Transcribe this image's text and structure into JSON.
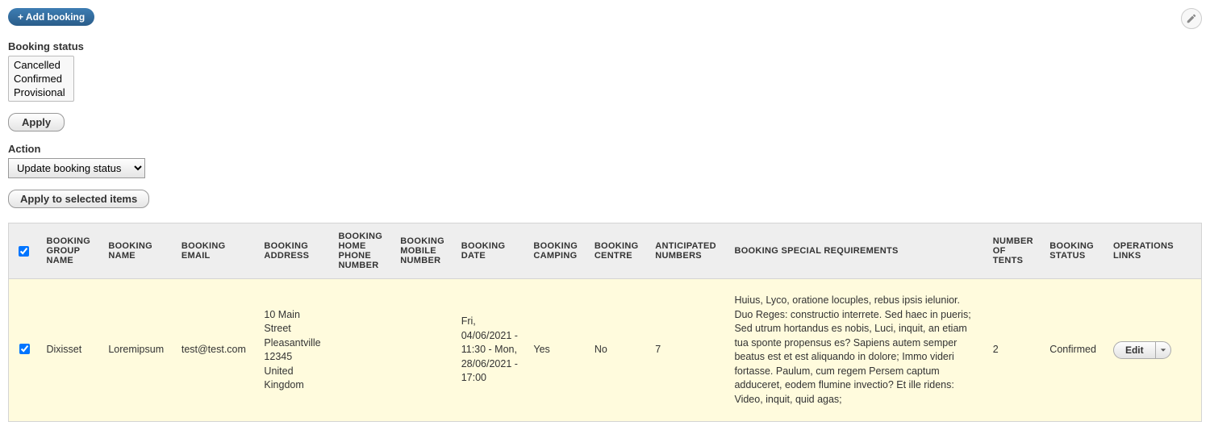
{
  "top": {
    "add_booking_label": "+ Add booking"
  },
  "filter": {
    "status_label": "Booking status",
    "status_options": [
      "Cancelled",
      "Confirmed",
      "Provisional"
    ],
    "apply_label": "Apply"
  },
  "action": {
    "label": "Action",
    "options": [
      "Update booking status"
    ],
    "selected": "Update booking status",
    "apply_selected_label": "Apply to selected items"
  },
  "table": {
    "columns": [
      "",
      "BOOKING GROUP NAME",
      "BOOKING NAME",
      "BOOKING EMAIL",
      "BOOKING ADDRESS",
      "BOOKING HOME PHONE NUMBER",
      "BOOKING MOBILE NUMBER",
      "BOOKING DATE",
      "BOOKING CAMPING",
      "BOOKING CENTRE",
      "ANTICIPATED NUMBERS",
      "BOOKING SPECIAL REQUIREMENTS",
      "NUMBER OF TENTS",
      "BOOKING STATUS",
      "OPERATIONS LINKS"
    ],
    "col_widths": [
      "32px",
      "72px",
      "84px",
      "90px",
      "74px",
      "72px",
      "66px",
      "84px",
      "64px",
      "62px",
      "92px",
      "300px",
      "62px",
      "72px",
      "110px"
    ],
    "header_checked": true,
    "rows": [
      {
        "checked": true,
        "group_name": "Dixisset",
        "name": "Loremipsum",
        "email": "test@test.com",
        "address": "10 Main Street\nPleasantville\n12345\nUnited Kingdom",
        "home_phone": "",
        "mobile": "",
        "date": "Fri, 04/06/2021 - 11:30 - Mon, 28/06/2021 - 17:00",
        "camping": "Yes",
        "centre": "No",
        "anticipated": "7",
        "special": "Huius, Lyco, oratione locuples, rebus ipsis ielunior. Duo Reges: constructio interrete. Sed haec in pueris; Sed utrum hortandus es nobis, Luci, inquit, an etiam tua sponte propensus es? Sapiens autem semper beatus est et est aliquando in dolore; Immo videri fortasse. Paulum, cum regem Persem captum adduceret, eodem flumine invectio? Et ille ridens: Video, inquit, quid agas;",
        "tents": "2",
        "status": "Confirmed",
        "op_label": "Edit"
      }
    ]
  }
}
